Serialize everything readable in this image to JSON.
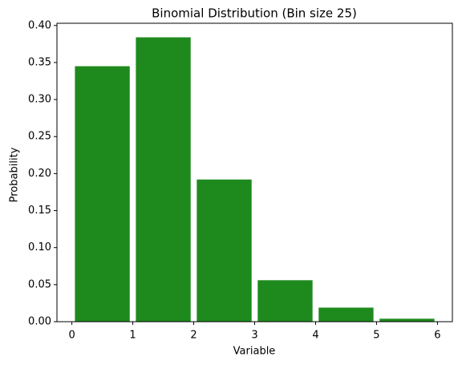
{
  "chart_data": {
    "type": "histogram",
    "title": "Binomial Distribution (Bin size 25)",
    "x_label": "Variable",
    "y_label": "Probability",
    "bins": [
      0,
      1,
      2,
      3,
      4,
      5,
      6
    ],
    "values": [
      0.345,
      0.384,
      0.192,
      0.056,
      0.019,
      0.004
    ],
    "color": "#1e8a1e",
    "xlim": [
      -0.245,
      6.245
    ],
    "xticks": [
      0,
      1,
      2,
      3,
      4,
      5,
      6
    ],
    "ylim": [
      0,
      0.403
    ],
    "yticks": [
      {
        "value": 0,
        "label": "0.00"
      },
      0.05,
      {
        "value": 0.1,
        "label": "0.10"
      },
      0.15,
      {
        "value": 0.2,
        "label": "0.20"
      },
      0.25,
      {
        "value": 0.3,
        "label": "0.30"
      },
      0.35,
      {
        "value": 0.4,
        "label": "0.40"
      }
    ],
    "grid": false
  }
}
